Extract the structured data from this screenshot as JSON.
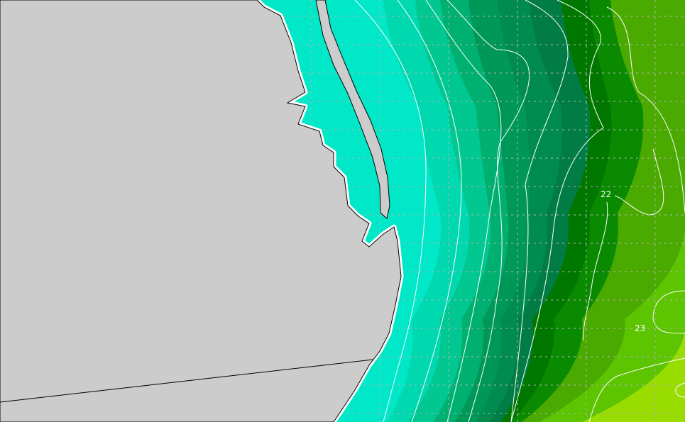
{
  "map": {
    "type": "sea-surface-temperature-contour-map",
    "contour_labels": [
      {
        "text": "22"
      },
      {
        "text": "23"
      }
    ],
    "colors": {
      "land": "#cccccc",
      "coastline": "#000000",
      "no_data_fringe": "#ffffff",
      "contour_line": "#ffffff",
      "grid": "#b4b4b4",
      "bands_warm_to_cool": [
        "#99dd00",
        "#5cc400",
        "#4aaa00",
        "#0a8a00",
        "#007800",
        "#007c44",
        "#008c50",
        "#009858",
        "#00b070",
        "#00c890",
        "#00d8b0",
        "#00e8c8"
      ]
    }
  }
}
